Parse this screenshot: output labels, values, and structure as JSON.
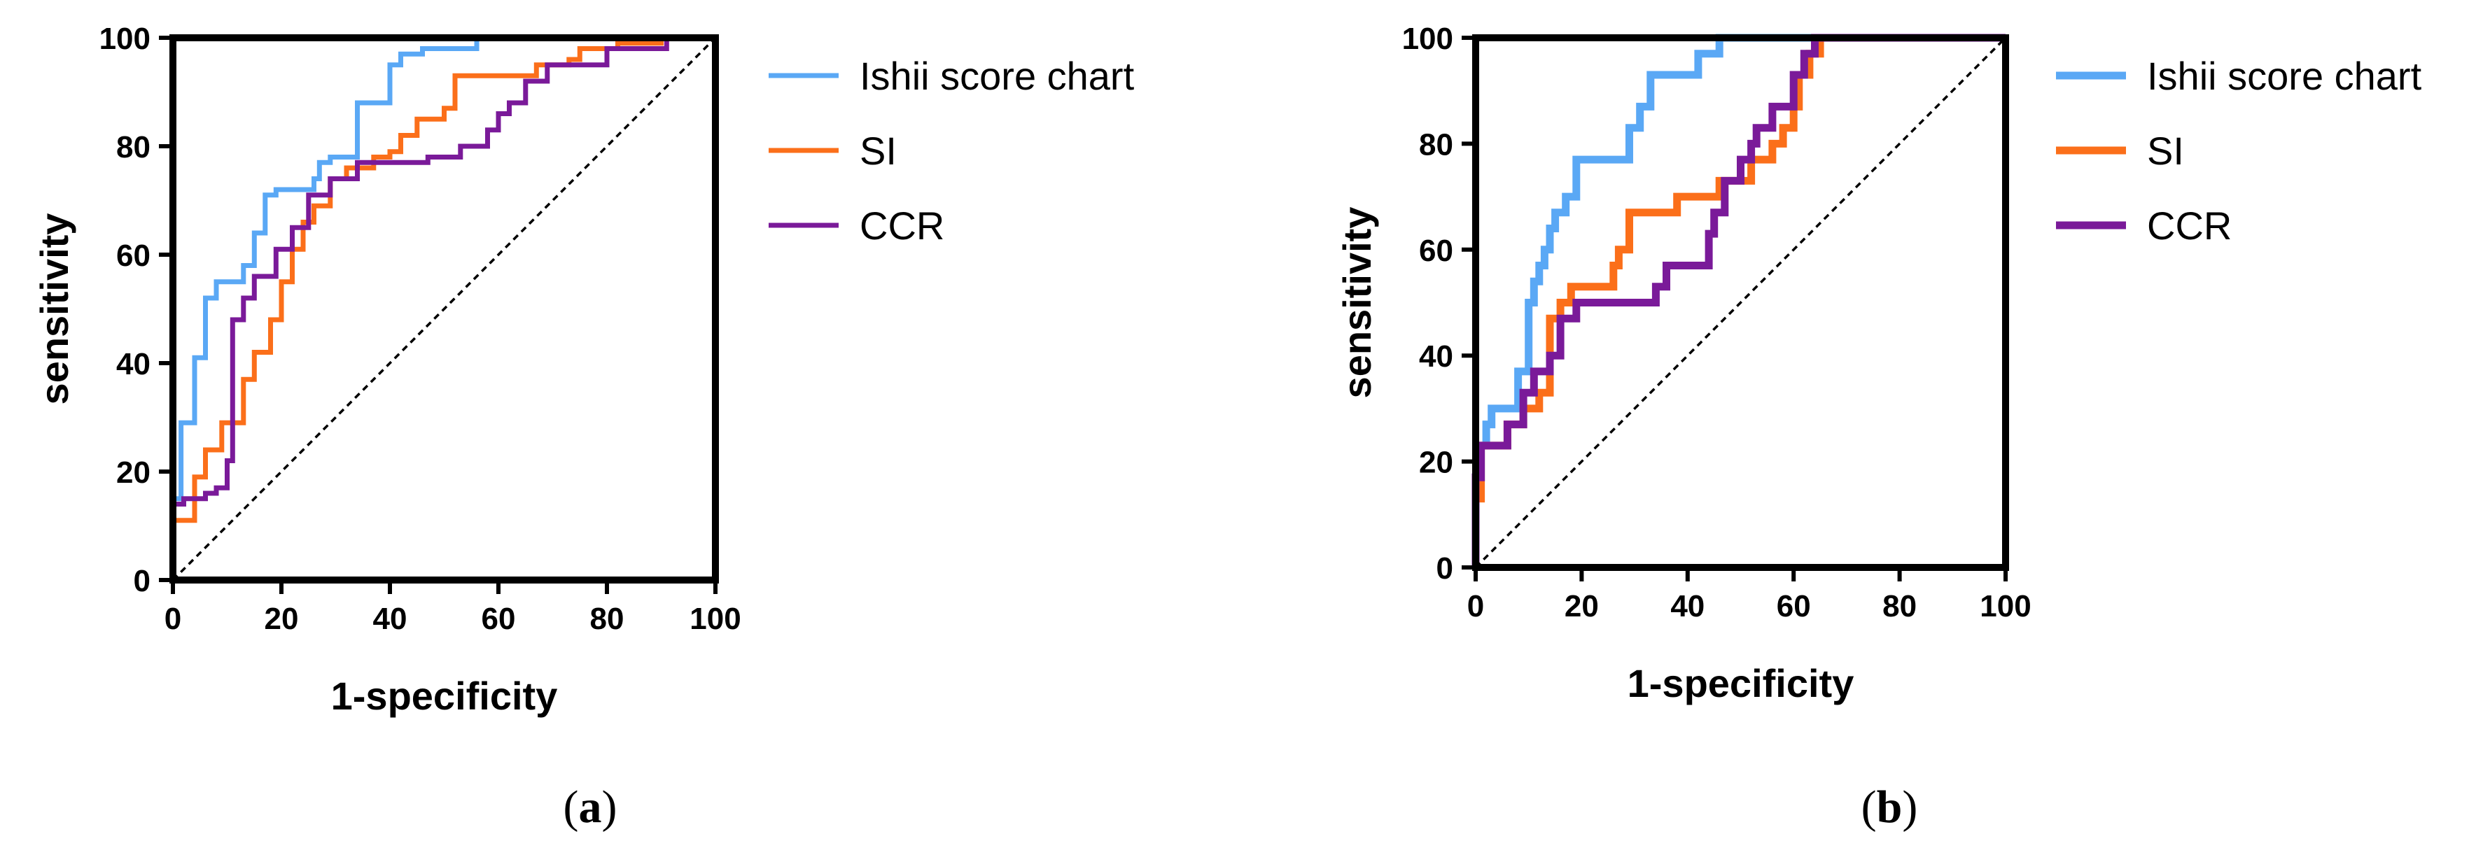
{
  "colors": {
    "ishii": "#5aa8f5",
    "si": "#fb6f1a",
    "ccr": "#7a1a99",
    "axis": "#000000",
    "diagonal": "#000000"
  },
  "chart_data": [
    {
      "type": "line",
      "panel_label": "a",
      "xlabel": "1-specificity",
      "ylabel": "sensitivity",
      "xlim": [
        0,
        100
      ],
      "ylim": [
        0,
        100
      ],
      "xticks": [
        0,
        20,
        40,
        60,
        80,
        100
      ],
      "yticks": [
        0,
        20,
        40,
        60,
        80,
        100
      ],
      "grid": false,
      "legend_position": "right",
      "reference_line": {
        "from": [
          0,
          0
        ],
        "to": [
          100,
          100
        ],
        "style": "dashed"
      },
      "series": [
        {
          "name": "Ishii score chart",
          "color_key": "ishii",
          "points": [
            [
              0,
              0
            ],
            [
              0,
              15
            ],
            [
              1.5,
              15
            ],
            [
              1.5,
              29
            ],
            [
              4,
              29
            ],
            [
              4,
              41
            ],
            [
              6,
              41
            ],
            [
              6,
              52
            ],
            [
              8,
              52
            ],
            [
              8,
              55
            ],
            [
              13,
              55
            ],
            [
              13,
              58
            ],
            [
              15,
              58
            ],
            [
              15,
              64
            ],
            [
              17,
              64
            ],
            [
              17,
              71
            ],
            [
              19,
              71
            ],
            [
              19,
              72
            ],
            [
              26,
              72
            ],
            [
              26,
              74
            ],
            [
              27,
              74
            ],
            [
              27,
              77
            ],
            [
              29,
              77
            ],
            [
              29,
              78
            ],
            [
              34,
              78
            ],
            [
              34,
              88
            ],
            [
              40,
              88
            ],
            [
              40,
              95
            ],
            [
              42,
              95
            ],
            [
              42,
              97
            ],
            [
              46,
              97
            ],
            [
              46,
              98
            ],
            [
              56,
              98
            ],
            [
              56,
              100
            ],
            [
              100,
              100
            ]
          ]
        },
        {
          "name": "SI",
          "color_key": "si",
          "points": [
            [
              0,
              11
            ],
            [
              4,
              11
            ],
            [
              4,
              19
            ],
            [
              6,
              19
            ],
            [
              6,
              24
            ],
            [
              9,
              24
            ],
            [
              9,
              29
            ],
            [
              13,
              29
            ],
            [
              13,
              37
            ],
            [
              15,
              37
            ],
            [
              15,
              42
            ],
            [
              18,
              42
            ],
            [
              18,
              48
            ],
            [
              20,
              48
            ],
            [
              20,
              55
            ],
            [
              22,
              55
            ],
            [
              22,
              61
            ],
            [
              24,
              61
            ],
            [
              24,
              66
            ],
            [
              26,
              66
            ],
            [
              26,
              69
            ],
            [
              29,
              69
            ],
            [
              29,
              74
            ],
            [
              32,
              74
            ],
            [
              32,
              76
            ],
            [
              37,
              76
            ],
            [
              37,
              78
            ],
            [
              40,
              78
            ],
            [
              40,
              79
            ],
            [
              42,
              79
            ],
            [
              42,
              82
            ],
            [
              45,
              82
            ],
            [
              45,
              85
            ],
            [
              50,
              85
            ],
            [
              50,
              87
            ],
            [
              52,
              87
            ],
            [
              52,
              93
            ],
            [
              67,
              93
            ],
            [
              67,
              95
            ],
            [
              73,
              95
            ],
            [
              73,
              96
            ],
            [
              75,
              96
            ],
            [
              75,
              98
            ],
            [
              82,
              98
            ],
            [
              82,
              99
            ],
            [
              90,
              99
            ],
            [
              90,
              100
            ]
          ]
        },
        {
          "name": "CCR",
          "color_key": "ccr",
          "points": [
            [
              0,
              14
            ],
            [
              2,
              14
            ],
            [
              2,
              15
            ],
            [
              6,
              15
            ],
            [
              6,
              16
            ],
            [
              8,
              16
            ],
            [
              8,
              17
            ],
            [
              10,
              17
            ],
            [
              10,
              22
            ],
            [
              11,
              22
            ],
            [
              11,
              48
            ],
            [
              13,
              48
            ],
            [
              13,
              52
            ],
            [
              15,
              52
            ],
            [
              15,
              56
            ],
            [
              19,
              56
            ],
            [
              19,
              61
            ],
            [
              22,
              61
            ],
            [
              22,
              65
            ],
            [
              25,
              65
            ],
            [
              25,
              71
            ],
            [
              29,
              71
            ],
            [
              29,
              74
            ],
            [
              34,
              74
            ],
            [
              34,
              77
            ],
            [
              47,
              77
            ],
            [
              47,
              78
            ],
            [
              53,
              78
            ],
            [
              53,
              80
            ],
            [
              58,
              80
            ],
            [
              58,
              83
            ],
            [
              60,
              83
            ],
            [
              60,
              86
            ],
            [
              62,
              86
            ],
            [
              62,
              88
            ],
            [
              65,
              88
            ],
            [
              65,
              92
            ],
            [
              69,
              92
            ],
            [
              69,
              95
            ],
            [
              80,
              95
            ],
            [
              80,
              98
            ],
            [
              91,
              98
            ],
            [
              91,
              100
            ]
          ]
        }
      ]
    },
    {
      "type": "line",
      "panel_label": "b",
      "xlabel": "1-specificity",
      "ylabel": "sensitivity",
      "xlim": [
        0,
        100
      ],
      "ylim": [
        0,
        100
      ],
      "xticks": [
        0,
        20,
        40,
        60,
        80,
        100
      ],
      "yticks": [
        0,
        20,
        40,
        60,
        80,
        100
      ],
      "grid": false,
      "legend_position": "right",
      "reference_line": {
        "from": [
          0,
          0
        ],
        "to": [
          100,
          100
        ],
        "style": "dashed"
      },
      "series": [
        {
          "name": "Ishii score chart",
          "color_key": "ishii",
          "points": [
            [
              0,
              0
            ],
            [
              0,
              17
            ],
            [
              1,
              17
            ],
            [
              1,
              23
            ],
            [
              2,
              23
            ],
            [
              2,
              27
            ],
            [
              3,
              27
            ],
            [
              3,
              30
            ],
            [
              8,
              30
            ],
            [
              8,
              37
            ],
            [
              10,
              37
            ],
            [
              10,
              50
            ],
            [
              11,
              50
            ],
            [
              11,
              54
            ],
            [
              12,
              54
            ],
            [
              12,
              57
            ],
            [
              13,
              57
            ],
            [
              13,
              60
            ],
            [
              14,
              60
            ],
            [
              14,
              64
            ],
            [
              15,
              64
            ],
            [
              15,
              67
            ],
            [
              17,
              67
            ],
            [
              17,
              70
            ],
            [
              19,
              70
            ],
            [
              19,
              77
            ],
            [
              29,
              77
            ],
            [
              29,
              83
            ],
            [
              31,
              83
            ],
            [
              31,
              87
            ],
            [
              33,
              87
            ],
            [
              33,
              93
            ],
            [
              42,
              93
            ],
            [
              42,
              97
            ],
            [
              46,
              97
            ],
            [
              46,
              100
            ],
            [
              100,
              100
            ]
          ]
        },
        {
          "name": "SI",
          "color_key": "si",
          "points": [
            [
              0,
              13
            ],
            [
              1,
              13
            ],
            [
              1,
              23
            ],
            [
              6,
              23
            ],
            [
              6,
              27
            ],
            [
              9,
              27
            ],
            [
              9,
              30
            ],
            [
              12,
              30
            ],
            [
              12,
              33
            ],
            [
              14,
              33
            ],
            [
              14,
              47
            ],
            [
              16,
              47
            ],
            [
              16,
              50
            ],
            [
              18,
              50
            ],
            [
              18,
              53
            ],
            [
              26,
              53
            ],
            [
              26,
              57
            ],
            [
              27,
              57
            ],
            [
              27,
              60
            ],
            [
              29,
              60
            ],
            [
              29,
              67
            ],
            [
              38,
              67
            ],
            [
              38,
              70
            ],
            [
              46,
              70
            ],
            [
              46,
              73
            ],
            [
              52,
              73
            ],
            [
              52,
              77
            ],
            [
              56,
              77
            ],
            [
              56,
              80
            ],
            [
              58,
              80
            ],
            [
              58,
              83
            ],
            [
              60,
              83
            ],
            [
              60,
              87
            ],
            [
              61,
              87
            ],
            [
              61,
              93
            ],
            [
              63,
              93
            ],
            [
              63,
              97
            ],
            [
              65,
              97
            ],
            [
              65,
              100
            ],
            [
              100,
              100
            ]
          ]
        },
        {
          "name": "CCR",
          "color_key": "ccr",
          "points": [
            [
              0,
              0
            ],
            [
              0,
              17
            ],
            [
              1,
              17
            ],
            [
              1,
              23
            ],
            [
              6,
              23
            ],
            [
              6,
              27
            ],
            [
              9,
              27
            ],
            [
              9,
              33
            ],
            [
              11,
              33
            ],
            [
              11,
              37
            ],
            [
              14,
              37
            ],
            [
              14,
              40
            ],
            [
              16,
              40
            ],
            [
              16,
              47
            ],
            [
              19,
              47
            ],
            [
              19,
              50
            ],
            [
              34,
              50
            ],
            [
              34,
              53
            ],
            [
              36,
              53
            ],
            [
              36,
              57
            ],
            [
              44,
              57
            ],
            [
              44,
              63
            ],
            [
              45,
              63
            ],
            [
              45,
              67
            ],
            [
              47,
              67
            ],
            [
              47,
              73
            ],
            [
              50,
              73
            ],
            [
              50,
              77
            ],
            [
              52,
              77
            ],
            [
              52,
              80
            ],
            [
              53,
              80
            ],
            [
              53,
              83
            ],
            [
              56,
              83
            ],
            [
              56,
              87
            ],
            [
              60,
              87
            ],
            [
              60,
              93
            ],
            [
              62,
              93
            ],
            [
              62,
              97
            ],
            [
              64,
              97
            ],
            [
              64,
              100
            ],
            [
              100,
              100
            ]
          ]
        }
      ]
    }
  ]
}
